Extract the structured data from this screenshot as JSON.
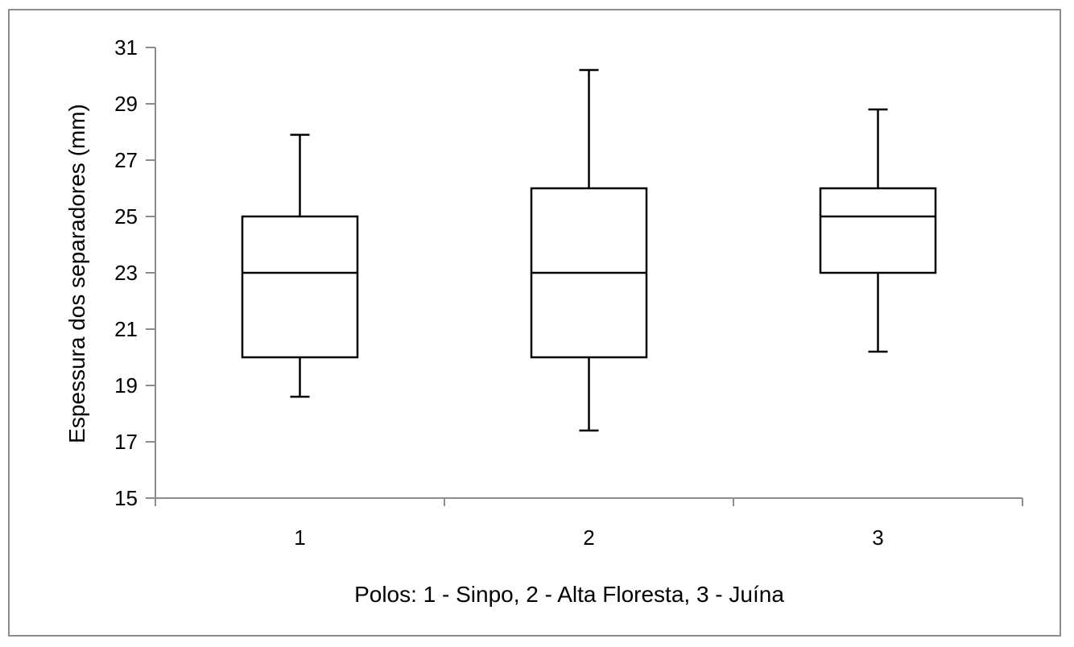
{
  "chart_data": {
    "type": "boxplot",
    "xlabel": "Polos: 1 - Sinpo, 2 - Alta Floresta, 3 - Juína",
    "ylabel": "Espessura dos separadores  (mm)",
    "ylim": [
      15,
      31
    ],
    "yticks": [
      15,
      17,
      19,
      21,
      23,
      25,
      27,
      29,
      31
    ],
    "categories": [
      "1",
      "2",
      "3"
    ],
    "boxes": [
      {
        "category": "1",
        "whisker_low": 18.6,
        "q1": 20,
        "median": 23,
        "q3": 25,
        "whisker_high": 27.9
      },
      {
        "category": "2",
        "whisker_low": 17.4,
        "q1": 20,
        "median": 23,
        "q3": 26,
        "whisker_high": 30.2
      },
      {
        "category": "3",
        "whisker_low": 20.2,
        "q1": 23,
        "median": 25,
        "q3": 26,
        "whisker_high": 28.8
      }
    ],
    "grid": false,
    "legend": "none",
    "colors": {
      "line": "#000000",
      "box_fill": "#ffffff",
      "frame": "#8c8c8c"
    }
  }
}
